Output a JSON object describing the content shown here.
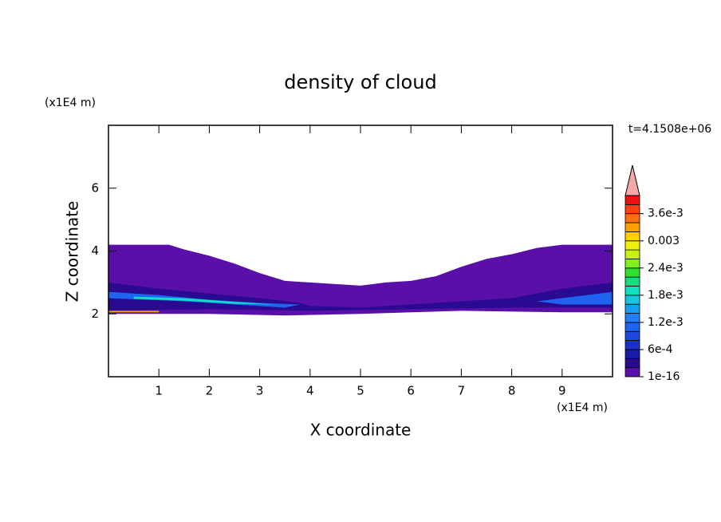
{
  "chart_data": {
    "type": "contour",
    "title": "density of cloud",
    "x_label": "X coordinate",
    "y_label": "Z coordinate",
    "x_unit": "(x1E4 m)",
    "y_unit": "(x1E4 m)",
    "annotation": "t=4.1508e+06",
    "xlim": [
      0,
      10
    ],
    "ylim": [
      0,
      8
    ],
    "xticks": [
      1,
      2,
      3,
      4,
      5,
      6,
      7,
      8,
      9
    ],
    "yticks": [
      2,
      4,
      6
    ],
    "clim": [
      0,
      0.004
    ],
    "levels": [
      1e-16,
      0.0002,
      0.0004,
      0.0006,
      0.0008,
      0.001,
      0.0012,
      0.0014,
      0.0016,
      0.0018,
      0.002,
      0.0022,
      0.0024,
      0.0026,
      0.0028,
      0.003,
      0.0032,
      0.0034,
      0.0036,
      0.0038
    ],
    "colors": [
      "#5a0fa8",
      "#2a0a90",
      "#1a1aa8",
      "#1c30c8",
      "#1e48e0",
      "#1e64f0",
      "#2080ff",
      "#18a0f0",
      "#10c8e0",
      "#10e0c0",
      "#10e080",
      "#30e030",
      "#80f020",
      "#c8f010",
      "#f0f010",
      "#ffd000",
      "#ffa000",
      "#ff7010",
      "#ff4010",
      "#f01010"
    ],
    "extend_color": "#f4a8a8",
    "cticks": [
      {
        "value": 1e-16,
        "label": "1e-16"
      },
      {
        "value": 0.0006,
        "label": "6e-4"
      },
      {
        "value": 0.0012,
        "label": "1.2e-3"
      },
      {
        "value": 0.0018,
        "label": "1.8e-3"
      },
      {
        "value": 0.0024,
        "label": "2.4e-3"
      },
      0.003,
      {
        "value": 0.0036,
        "label": "3.6e-3"
      }
    ],
    "regions": [
      {
        "level": 1e-16,
        "x": [
          0,
          1.2,
          1.5,
          2,
          2.5,
          3,
          3.5,
          4,
          4.5,
          5,
          5.5,
          6,
          6.5,
          7,
          7.5,
          8,
          8.5,
          9,
          10,
          10,
          9,
          7,
          5,
          3.5,
          2,
          0
        ],
        "z": [
          4.2,
          4.2,
          4.05,
          3.85,
          3.6,
          3.3,
          3.05,
          3.0,
          2.95,
          2.9,
          3.0,
          3.05,
          3.2,
          3.5,
          3.75,
          3.9,
          4.1,
          4.2,
          4.2,
          2.05,
          2.05,
          2.1,
          2.0,
          1.95,
          2.0,
          2.0
        ]
      },
      {
        "level": 0.0002,
        "x": [
          0,
          1,
          2,
          3,
          3.8,
          4,
          5,
          6,
          7,
          8,
          9,
          10,
          10,
          8,
          6,
          4,
          2,
          0
        ],
        "z": [
          3.0,
          2.8,
          2.65,
          2.5,
          2.35,
          2.25,
          2.2,
          2.3,
          2.4,
          2.5,
          2.8,
          3.0,
          2.2,
          2.2,
          2.15,
          2.1,
          2.15,
          2.1
        ]
      },
      {
        "level": 0.001,
        "x": [
          0,
          1,
          2,
          3,
          3.8,
          3.5,
          2.5,
          1.5,
          0
        ],
        "z": [
          2.7,
          2.6,
          2.45,
          2.35,
          2.3,
          2.2,
          2.3,
          2.4,
          2.5
        ]
      },
      {
        "level": 0.001,
        "x": [
          8.5,
          9.5,
          10,
          10,
          9
        ],
        "z": [
          2.4,
          2.6,
          2.7,
          2.3,
          2.3
        ]
      },
      {
        "level": 0.0018,
        "x": [
          0.5,
          1.5,
          2.5,
          3.3,
          2.5,
          1.5,
          0.5
        ],
        "z": [
          2.55,
          2.5,
          2.38,
          2.3,
          2.32,
          2.42,
          2.48
        ]
      },
      {
        "level": 0.0032,
        "x": [
          0,
          1,
          1,
          0
        ],
        "z": [
          2.1,
          2.1,
          2.05,
          2.05
        ]
      }
    ]
  }
}
